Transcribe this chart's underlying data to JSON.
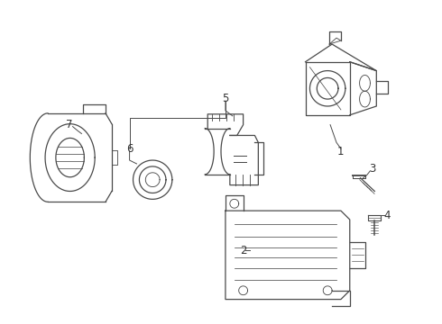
{
  "background": "#ffffff",
  "line_color": "#4a4a4a",
  "label_color": "#333333",
  "fig_width": 4.9,
  "fig_height": 3.6,
  "dpi": 100
}
